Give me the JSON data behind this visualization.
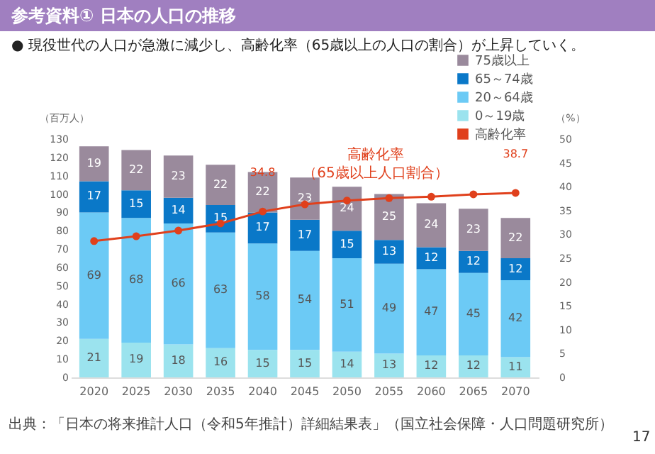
{
  "chart_data": {
    "type": "bar",
    "title": "参考資料①  日本の人口の推移",
    "subtitle": "● 現役世代の人口が急激に減少し、高齢化率（65歳以上の人口の割合）が上昇していく。",
    "ylabel": "（百万人）",
    "y2label": "（%）",
    "categories": [
      "2020",
      "2025",
      "2030",
      "2035",
      "2040",
      "2045",
      "2050",
      "2055",
      "2060",
      "2065",
      "2070"
    ],
    "stacked": true,
    "legend": "top right",
    "ylim": [
      0,
      130
    ],
    "yticks": [
      0,
      10,
      20,
      30,
      40,
      50,
      60,
      70,
      80,
      90,
      100,
      110,
      120,
      130
    ],
    "y2lim": [
      0,
      50
    ],
    "y2ticks": [
      0,
      5,
      10,
      15,
      20,
      25,
      30,
      35,
      40,
      45,
      50
    ],
    "series": [
      {
        "name": "0～19歳",
        "color": "#9be3ee",
        "values": [
          21,
          19,
          18,
          16,
          15,
          15,
          14,
          13,
          12,
          12,
          11
        ],
        "value_labels": [
          "21",
          "19",
          "18",
          "16",
          "15",
          "15",
          "14",
          "13",
          "12",
          "12",
          "11"
        ]
      },
      {
        "name": "20～64歳",
        "color": "#6ccaf5",
        "values": [
          69,
          68,
          66,
          63,
          58,
          54,
          51,
          49,
          47,
          45,
          42
        ],
        "value_labels": [
          "69",
          "68",
          "66",
          "63",
          "58",
          "54",
          "51",
          "49",
          "47",
          "45",
          "42"
        ]
      },
      {
        "name": "65～74歳",
        "color": "#0a78c8",
        "values": [
          17,
          15,
          14,
          15,
          17,
          17,
          15,
          13,
          12,
          12,
          12
        ],
        "value_labels": [
          "17",
          "15",
          "14",
          "15",
          "17",
          "17",
          "15",
          "13",
          "12",
          "12",
          "12"
        ]
      },
      {
        "name": "75歳以上",
        "color": "#9a8a9c",
        "values": [
          19,
          22,
          23,
          22,
          22,
          23,
          24,
          25,
          24,
          23,
          22
        ],
        "value_labels": [
          "19",
          "22",
          "23",
          "22",
          "22",
          "23",
          "24",
          "25",
          "24",
          "23",
          "22"
        ]
      },
      {
        "name": "高齢化率",
        "type": "line",
        "axis": "y2",
        "marker": "circle",
        "color": "#e0401c",
        "values": [
          28.6,
          29.6,
          30.8,
          32.3,
          34.8,
          36.3,
          37.1,
          37.6,
          37.9,
          38.4,
          38.7
        ],
        "value_labels": [
          null,
          null,
          null,
          null,
          "34.8",
          null,
          null,
          null,
          null,
          null,
          "38.7"
        ]
      }
    ],
    "annotations": [
      "高齢化率",
      "（65歳以上人口割合）",
      "出典：「日本の将来推計人口（令和5年推計）詳細結果表」（国立社会保障・人口問題研究所）",
      "17"
    ]
  }
}
